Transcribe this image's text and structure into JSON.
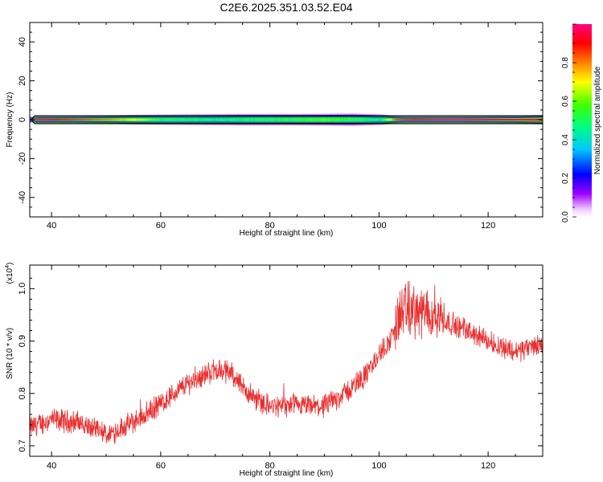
{
  "title": "C2E6.2025.351.03.52.E04",
  "colors": {
    "snr_line": "#e83030",
    "tunnel_outer": "#000000",
    "tunnel_inner": "#00a000"
  },
  "chart_data": [
    {
      "type": "heatmap",
      "xlabel": "Height of straight line (km)",
      "ylabel": "Frequency (Hz)",
      "xlim": [
        36,
        130
      ],
      "ylim": [
        -50,
        50
      ],
      "xticks": [
        40,
        60,
        80,
        100,
        120
      ],
      "yticks": [
        40,
        20,
        0,
        -20,
        -40
      ],
      "xtick_labels": [
        "40",
        "60",
        "80",
        "100",
        "120"
      ],
      "ytick_labels": [
        "40",
        "20",
        "0",
        "-20",
        "-40"
      ],
      "colorbar": {
        "label": "Normalized spectral amplitude",
        "range": [
          0,
          1
        ],
        "ticks": [
          "0.0",
          "0.2",
          "0.4",
          "0.6",
          "0.8"
        ],
        "tick_values": [
          0,
          0.2,
          0.4,
          0.6,
          0.8
        ]
      },
      "energy_band": {
        "center_hz": 0,
        "halfwidth_hz": [
          [
            36,
            1.5
          ],
          [
            45,
            1.8
          ],
          [
            55,
            2.5
          ],
          [
            65,
            2.8
          ],
          [
            75,
            3.0
          ],
          [
            85,
            3.0
          ],
          [
            95,
            3.2
          ],
          [
            100,
            2.8
          ],
          [
            104,
            1.5
          ],
          [
            115,
            1.5
          ],
          [
            125,
            2.0
          ],
          [
            130,
            2.5
          ]
        ],
        "core_amplitude": [
          [
            36,
            0.95
          ],
          [
            45,
            0.85
          ],
          [
            50,
            0.8
          ],
          [
            55,
            0.7
          ],
          [
            60,
            0.55
          ],
          [
            70,
            0.5
          ],
          [
            80,
            0.55
          ],
          [
            90,
            0.6
          ],
          [
            100,
            0.5
          ],
          [
            103,
            0.85
          ],
          [
            110,
            0.95
          ],
          [
            120,
            0.95
          ],
          [
            130,
            0.95
          ]
        ]
      },
      "tunnel_halfwidth_hz": 2
    },
    {
      "type": "line",
      "xlabel": "Height of straight line (km)",
      "ylabel": "SNR (10 * v/v)",
      "scale_label": "(x10",
      "scale_exp": "4",
      "scale_close": ")",
      "xlim": [
        36,
        130
      ],
      "ylim": [
        0.68,
        1.045
      ],
      "xticks": [
        40,
        60,
        80,
        100,
        120
      ],
      "yticks": [
        0.7,
        0.8,
        0.9,
        1.0
      ],
      "xtick_labels": [
        "40",
        "60",
        "80",
        "100",
        "120"
      ],
      "ytick_labels": [
        "0.7",
        "0.8",
        "0.9",
        "1.0"
      ],
      "series": [
        {
          "trend_x": [
            36,
            40,
            45,
            50,
            55,
            60,
            65,
            70,
            73,
            76,
            80,
            85,
            90,
            95,
            98,
            100,
            102,
            104,
            106,
            108,
            110,
            112,
            115,
            120,
            125,
            130
          ],
          "trend_y": [
            0.735,
            0.75,
            0.745,
            0.72,
            0.745,
            0.78,
            0.82,
            0.845,
            0.84,
            0.8,
            0.775,
            0.775,
            0.775,
            0.81,
            0.84,
            0.875,
            0.9,
            0.955,
            0.96,
            0.95,
            0.955,
            0.94,
            0.925,
            0.9,
            0.88,
            0.895
          ],
          "noise": 0.018
        }
      ]
    }
  ]
}
